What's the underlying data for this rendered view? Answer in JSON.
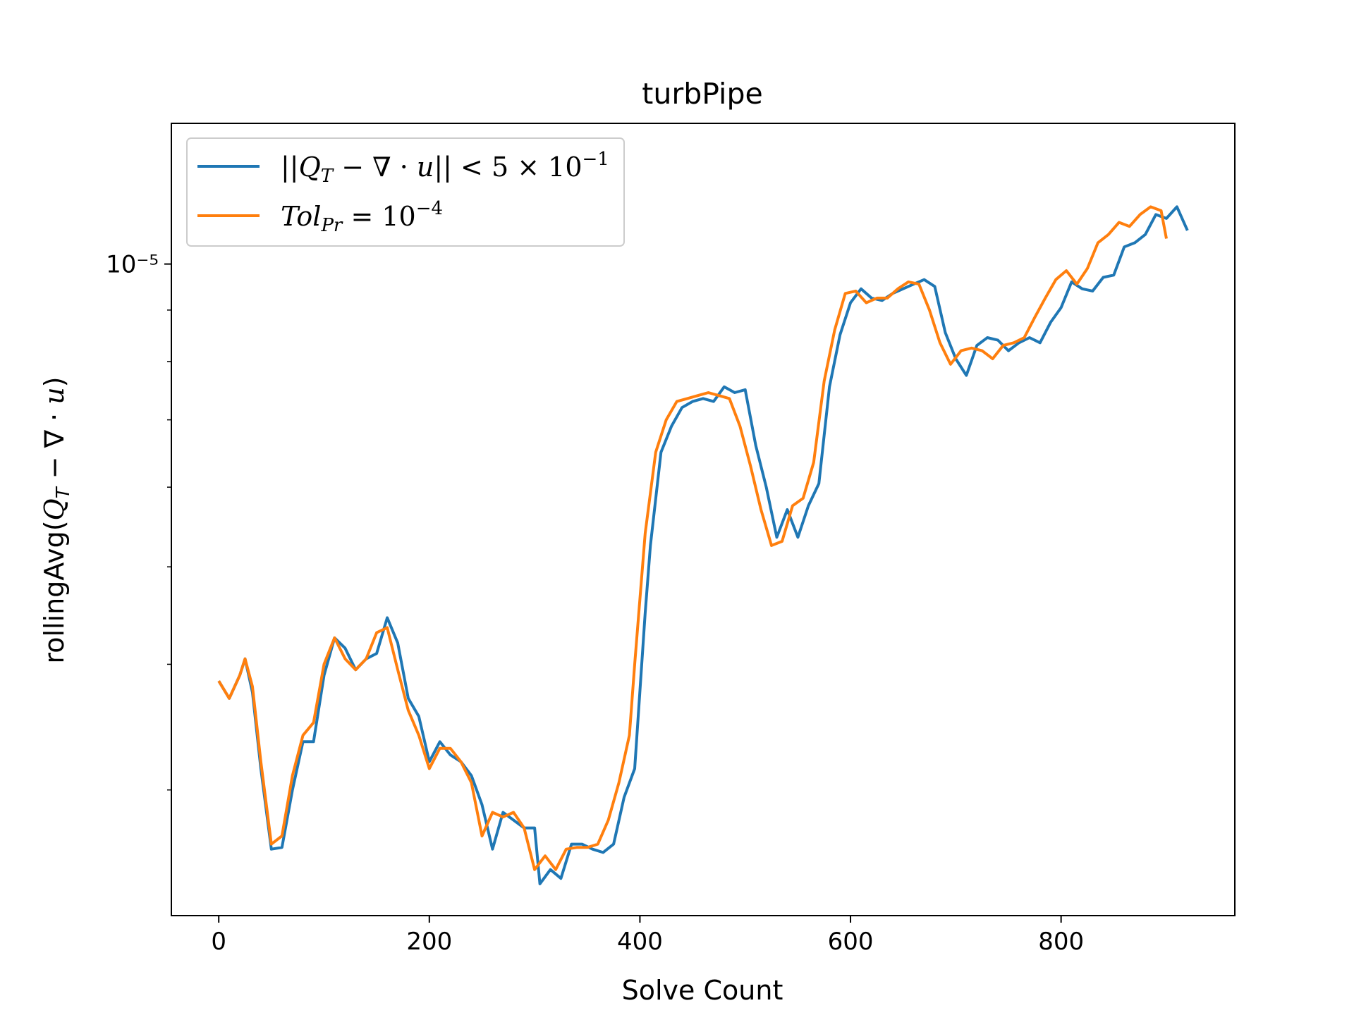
{
  "chart_data": {
    "type": "line",
    "title": "turbPipe",
    "xlabel": "Solve Count",
    "ylabel": "rollingAvg(Q_T − ∇·u)",
    "xlim": [
      -45,
      965
    ],
    "ylim": [
      2.25e-06,
      1.38e-05
    ],
    "yscale": "log",
    "x_ticks": [
      0,
      200,
      400,
      600,
      800
    ],
    "y_major_ticks": [
      {
        "value": 1e-05,
        "label": "10⁻⁵"
      }
    ],
    "y_minor_ticks": [
      3e-06,
      4e-06,
      5e-06,
      6e-06,
      7e-06,
      8e-06,
      9e-06
    ],
    "grid": false,
    "legend_position": "upper-left",
    "series": [
      {
        "name": "||Q_T − ∇·u|| < 5 × 10⁻¹",
        "color": "#1f77b4",
        "points": [
          [
            0,
            3.85e-06
          ],
          [
            10,
            3.7e-06
          ],
          [
            20,
            3.9e-06
          ],
          [
            25,
            4.05e-06
          ],
          [
            32,
            3.75e-06
          ],
          [
            40,
            3.15e-06
          ],
          [
            50,
            2.62e-06
          ],
          [
            60,
            2.63e-06
          ],
          [
            70,
            3e-06
          ],
          [
            80,
            3.35e-06
          ],
          [
            90,
            3.35e-06
          ],
          [
            100,
            3.9e-06
          ],
          [
            110,
            4.25e-06
          ],
          [
            120,
            4.15e-06
          ],
          [
            130,
            3.95e-06
          ],
          [
            140,
            4.05e-06
          ],
          [
            150,
            4.1e-06
          ],
          [
            160,
            4.45e-06
          ],
          [
            170,
            4.2e-06
          ],
          [
            180,
            3.7e-06
          ],
          [
            190,
            3.55e-06
          ],
          [
            200,
            3.2e-06
          ],
          [
            210,
            3.35e-06
          ],
          [
            220,
            3.25e-06
          ],
          [
            230,
            3.2e-06
          ],
          [
            240,
            3.1e-06
          ],
          [
            250,
            2.9e-06
          ],
          [
            260,
            2.62e-06
          ],
          [
            270,
            2.85e-06
          ],
          [
            280,
            2.8e-06
          ],
          [
            290,
            2.75e-06
          ],
          [
            300,
            2.75e-06
          ],
          [
            305,
            2.42e-06
          ],
          [
            315,
            2.5e-06
          ],
          [
            325,
            2.45e-06
          ],
          [
            335,
            2.65e-06
          ],
          [
            345,
            2.65e-06
          ],
          [
            355,
            2.62e-06
          ],
          [
            365,
            2.6e-06
          ],
          [
            375,
            2.65e-06
          ],
          [
            385,
            2.95e-06
          ],
          [
            395,
            3.15e-06
          ],
          [
            405,
            4.5e-06
          ],
          [
            410,
            5.25e-06
          ],
          [
            420,
            6.5e-06
          ],
          [
            430,
            6.9e-06
          ],
          [
            440,
            7.2e-06
          ],
          [
            450,
            7.3e-06
          ],
          [
            460,
            7.35e-06
          ],
          [
            470,
            7.3e-06
          ],
          [
            480,
            7.55e-06
          ],
          [
            490,
            7.45e-06
          ],
          [
            500,
            7.5e-06
          ],
          [
            510,
            6.6e-06
          ],
          [
            520,
            6e-06
          ],
          [
            530,
            5.35e-06
          ],
          [
            540,
            5.7e-06
          ],
          [
            550,
            5.35e-06
          ],
          [
            560,
            5.75e-06
          ],
          [
            570,
            6.05e-06
          ],
          [
            580,
            7.55e-06
          ],
          [
            590,
            8.5e-06
          ],
          [
            600,
            9.15e-06
          ],
          [
            610,
            9.45e-06
          ],
          [
            620,
            9.25e-06
          ],
          [
            630,
            9.2e-06
          ],
          [
            640,
            9.35e-06
          ],
          [
            650,
            9.45e-06
          ],
          [
            660,
            9.55e-06
          ],
          [
            670,
            9.65e-06
          ],
          [
            680,
            9.5e-06
          ],
          [
            690,
            8.55e-06
          ],
          [
            700,
            8.05e-06
          ],
          [
            710,
            7.75e-06
          ],
          [
            720,
            8.3e-06
          ],
          [
            730,
            8.45e-06
          ],
          [
            740,
            8.4e-06
          ],
          [
            750,
            8.2e-06
          ],
          [
            760,
            8.35e-06
          ],
          [
            770,
            8.45e-06
          ],
          [
            780,
            8.35e-06
          ],
          [
            790,
            8.75e-06
          ],
          [
            800,
            9.05e-06
          ],
          [
            810,
            9.6e-06
          ],
          [
            820,
            9.45e-06
          ],
          [
            830,
            9.4e-06
          ],
          [
            840,
            9.7e-06
          ],
          [
            850,
            9.75e-06
          ],
          [
            860,
            1.04e-05
          ],
          [
            870,
            1.05e-05
          ],
          [
            880,
            1.07e-05
          ],
          [
            890,
            1.12e-05
          ],
          [
            900,
            1.11e-05
          ],
          [
            910,
            1.14e-05
          ],
          [
            920,
            1.08e-05
          ]
        ]
      },
      {
        "name": "Tol_Pr = 10⁻⁴",
        "color": "#ff7f0e",
        "points": [
          [
            0,
            3.85e-06
          ],
          [
            10,
            3.7e-06
          ],
          [
            20,
            3.9e-06
          ],
          [
            25,
            4.05e-06
          ],
          [
            32,
            3.8e-06
          ],
          [
            40,
            3.2e-06
          ],
          [
            50,
            2.65e-06
          ],
          [
            60,
            2.7e-06
          ],
          [
            70,
            3.1e-06
          ],
          [
            80,
            3.4e-06
          ],
          [
            90,
            3.5e-06
          ],
          [
            100,
            4e-06
          ],
          [
            110,
            4.25e-06
          ],
          [
            120,
            4.05e-06
          ],
          [
            130,
            3.95e-06
          ],
          [
            140,
            4.05e-06
          ],
          [
            150,
            4.3e-06
          ],
          [
            160,
            4.35e-06
          ],
          [
            170,
            3.95e-06
          ],
          [
            180,
            3.6e-06
          ],
          [
            190,
            3.4e-06
          ],
          [
            200,
            3.15e-06
          ],
          [
            210,
            3.3e-06
          ],
          [
            220,
            3.3e-06
          ],
          [
            230,
            3.2e-06
          ],
          [
            240,
            3.05e-06
          ],
          [
            250,
            2.7e-06
          ],
          [
            260,
            2.85e-06
          ],
          [
            270,
            2.82e-06
          ],
          [
            280,
            2.85e-06
          ],
          [
            290,
            2.75e-06
          ],
          [
            300,
            2.5e-06
          ],
          [
            310,
            2.58e-06
          ],
          [
            320,
            2.5e-06
          ],
          [
            330,
            2.62e-06
          ],
          [
            340,
            2.63e-06
          ],
          [
            350,
            2.63e-06
          ],
          [
            360,
            2.65e-06
          ],
          [
            370,
            2.8e-06
          ],
          [
            380,
            3.05e-06
          ],
          [
            390,
            3.4e-06
          ],
          [
            395,
            4e-06
          ],
          [
            405,
            5.4e-06
          ],
          [
            415,
            6.5e-06
          ],
          [
            425,
            7e-06
          ],
          [
            435,
            7.3e-06
          ],
          [
            445,
            7.35e-06
          ],
          [
            455,
            7.4e-06
          ],
          [
            465,
            7.45e-06
          ],
          [
            475,
            7.4e-06
          ],
          [
            485,
            7.35e-06
          ],
          [
            495,
            6.9e-06
          ],
          [
            505,
            6.3e-06
          ],
          [
            515,
            5.7e-06
          ],
          [
            525,
            5.25e-06
          ],
          [
            535,
            5.3e-06
          ],
          [
            545,
            5.75e-06
          ],
          [
            555,
            5.85e-06
          ],
          [
            565,
            6.35e-06
          ],
          [
            575,
            7.65e-06
          ],
          [
            585,
            8.6e-06
          ],
          [
            595,
            9.35e-06
          ],
          [
            605,
            9.4e-06
          ],
          [
            615,
            9.15e-06
          ],
          [
            625,
            9.25e-06
          ],
          [
            635,
            9.25e-06
          ],
          [
            645,
            9.45e-06
          ],
          [
            655,
            9.6e-06
          ],
          [
            665,
            9.55e-06
          ],
          [
            675,
            9e-06
          ],
          [
            685,
            8.35e-06
          ],
          [
            695,
            7.95e-06
          ],
          [
            705,
            8.2e-06
          ],
          [
            715,
            8.25e-06
          ],
          [
            725,
            8.2e-06
          ],
          [
            735,
            8.05e-06
          ],
          [
            745,
            8.3e-06
          ],
          [
            755,
            8.35e-06
          ],
          [
            765,
            8.45e-06
          ],
          [
            775,
            8.85e-06
          ],
          [
            785,
            9.25e-06
          ],
          [
            795,
            9.65e-06
          ],
          [
            805,
            9.85e-06
          ],
          [
            815,
            9.55e-06
          ],
          [
            825,
            9.9e-06
          ],
          [
            835,
            1.05e-05
          ],
          [
            845,
            1.07e-05
          ],
          [
            855,
            1.1e-05
          ],
          [
            865,
            1.09e-05
          ],
          [
            875,
            1.12e-05
          ],
          [
            885,
            1.14e-05
          ],
          [
            895,
            1.13e-05
          ],
          [
            900,
            1.06e-05
          ]
        ]
      }
    ]
  }
}
